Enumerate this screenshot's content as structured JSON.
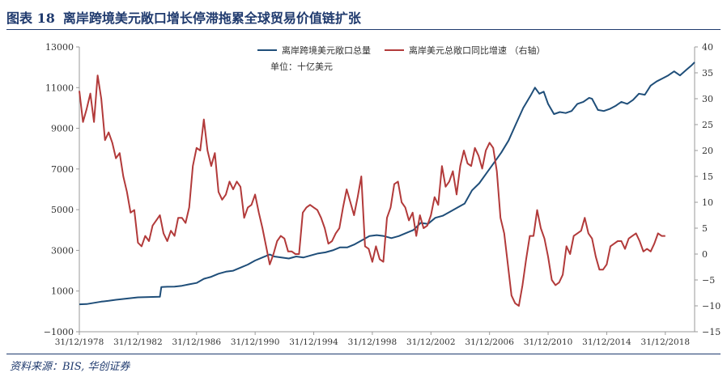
{
  "figure": {
    "label": "图表 18",
    "title": "离岸跨境美元敞口增长停滞拖累全球贸易价值链扩张",
    "source": "资料来源：BIS, 华创证券"
  },
  "chart_data": {
    "type": "line",
    "annotation": "单位：十亿美元",
    "left_axis": {
      "min": -1000,
      "max": 13000,
      "ticks": [
        -1000,
        1000,
        3000,
        5000,
        7000,
        9000,
        11000,
        13000
      ]
    },
    "right_axis": {
      "min": -15,
      "max": 40,
      "ticks": [
        -15,
        -10,
        -5,
        0,
        5,
        10,
        15,
        20,
        25,
        30,
        35,
        40
      ]
    },
    "x_axis": {
      "start": 1978.0,
      "end": 2020.0,
      "ticks": [
        {
          "value": 1978,
          "label": "31/12/1978"
        },
        {
          "value": 1982,
          "label": "31/12/1982"
        },
        {
          "value": 1986,
          "label": "31/12/1986"
        },
        {
          "value": 1990,
          "label": "31/12/1990"
        },
        {
          "value": 1994,
          "label": "31/12/1994"
        },
        {
          "value": 1998,
          "label": "31/12/1998"
        },
        {
          "value": 2002,
          "label": "31/12/2002"
        },
        {
          "value": 2006,
          "label": "31/12/2006"
        },
        {
          "value": 2010,
          "label": "31/12/2010"
        },
        {
          "value": 2014,
          "label": "31/12/2014"
        },
        {
          "value": 2018,
          "label": "31/12/2018"
        }
      ]
    },
    "legend_position": "top-center",
    "series": [
      {
        "name": "离岸跨境美元敞口总量",
        "axis": "left",
        "color": "#1f4e79",
        "points": [
          [
            1978.0,
            350
          ],
          [
            1978.5,
            360
          ],
          [
            1979.0,
            420
          ],
          [
            1979.5,
            480
          ],
          [
            1980.0,
            520
          ],
          [
            1980.5,
            570
          ],
          [
            1981.0,
            610
          ],
          [
            1981.5,
            650
          ],
          [
            1982.0,
            690
          ],
          [
            1982.5,
            700
          ],
          [
            1983.0,
            710
          ],
          [
            1983.5,
            720
          ],
          [
            1983.6,
            1200
          ],
          [
            1984.0,
            1210
          ],
          [
            1984.5,
            1220
          ],
          [
            1985.0,
            1260
          ],
          [
            1985.5,
            1330
          ],
          [
            1986.0,
            1400
          ],
          [
            1986.5,
            1600
          ],
          [
            1987.0,
            1700
          ],
          [
            1987.5,
            1850
          ],
          [
            1988.0,
            1950
          ],
          [
            1988.5,
            2000
          ],
          [
            1989.0,
            2150
          ],
          [
            1989.5,
            2300
          ],
          [
            1990.0,
            2500
          ],
          [
            1990.5,
            2650
          ],
          [
            1991.0,
            2800
          ],
          [
            1991.3,
            2700
          ],
          [
            1991.8,
            2650
          ],
          [
            1992.3,
            2600
          ],
          [
            1992.8,
            2700
          ],
          [
            1993.3,
            2650
          ],
          [
            1993.8,
            2750
          ],
          [
            1994.3,
            2850
          ],
          [
            1994.8,
            2900
          ],
          [
            1995.3,
            3000
          ],
          [
            1995.8,
            3150
          ],
          [
            1996.3,
            3150
          ],
          [
            1996.8,
            3300
          ],
          [
            1997.3,
            3500
          ],
          [
            1997.8,
            3700
          ],
          [
            1998.3,
            3750
          ],
          [
            1998.8,
            3700
          ],
          [
            1999.3,
            3600
          ],
          [
            1999.8,
            3700
          ],
          [
            2000.3,
            3850
          ],
          [
            2000.8,
            4000
          ],
          [
            2001.3,
            4350
          ],
          [
            2001.8,
            4300
          ],
          [
            2002.3,
            4600
          ],
          [
            2002.8,
            4700
          ],
          [
            2003.3,
            4900
          ],
          [
            2003.8,
            5100
          ],
          [
            2004.3,
            5300
          ],
          [
            2004.8,
            5950
          ],
          [
            2005.3,
            6300
          ],
          [
            2005.8,
            6800
          ],
          [
            2006.3,
            7300
          ],
          [
            2006.8,
            7800
          ],
          [
            2007.3,
            8400
          ],
          [
            2007.8,
            9200
          ],
          [
            2008.3,
            10000
          ],
          [
            2008.8,
            10600
          ],
          [
            2009.1,
            11000
          ],
          [
            2009.4,
            10700
          ],
          [
            2009.7,
            10800
          ],
          [
            2010.0,
            10200
          ],
          [
            2010.4,
            9700
          ],
          [
            2010.8,
            9800
          ],
          [
            2011.2,
            9750
          ],
          [
            2011.6,
            9850
          ],
          [
            2012.0,
            10200
          ],
          [
            2012.4,
            10300
          ],
          [
            2012.8,
            10500
          ],
          [
            2013.0,
            10450
          ],
          [
            2013.4,
            9900
          ],
          [
            2013.8,
            9850
          ],
          [
            2014.2,
            9950
          ],
          [
            2014.6,
            10100
          ],
          [
            2015.0,
            10300
          ],
          [
            2015.4,
            10200
          ],
          [
            2015.8,
            10400
          ],
          [
            2016.2,
            10700
          ],
          [
            2016.6,
            10650
          ],
          [
            2017.0,
            11100
          ],
          [
            2017.4,
            11300
          ],
          [
            2017.8,
            11450
          ],
          [
            2018.2,
            11600
          ],
          [
            2018.6,
            11800
          ],
          [
            2019.0,
            11600
          ],
          [
            2019.4,
            11850
          ],
          [
            2019.8,
            12100
          ],
          [
            2020.0,
            12250
          ]
        ]
      },
      {
        "name": "离岸美元总敞口同比增速 （右轴）",
        "axis": "right",
        "color": "#b23a3a",
        "points": [
          [
            1978.0,
            31.5
          ],
          [
            1978.25,
            25.5
          ],
          [
            1978.5,
            28
          ],
          [
            1978.75,
            31
          ],
          [
            1979.0,
            25.5
          ],
          [
            1979.25,
            34.5
          ],
          [
            1979.5,
            30
          ],
          [
            1979.75,
            22
          ],
          [
            1980.0,
            23.5
          ],
          [
            1980.25,
            21.5
          ],
          [
            1980.5,
            18.5
          ],
          [
            1980.75,
            19.5
          ],
          [
            1981.0,
            15
          ],
          [
            1981.25,
            12
          ],
          [
            1981.5,
            8
          ],
          [
            1981.75,
            8.5
          ],
          [
            1982.0,
            2.2
          ],
          [
            1982.25,
            1.5
          ],
          [
            1982.5,
            3.5
          ],
          [
            1982.75,
            2.5
          ],
          [
            1983.0,
            5.5
          ],
          [
            1983.25,
            6.5
          ],
          [
            1983.5,
            7.5
          ],
          [
            1983.75,
            4
          ],
          [
            1984.0,
            2.5
          ],
          [
            1984.25,
            4.5
          ],
          [
            1984.5,
            3.5
          ],
          [
            1984.75,
            7
          ],
          [
            1985.0,
            7
          ],
          [
            1985.25,
            6
          ],
          [
            1985.5,
            9
          ],
          [
            1985.75,
            17
          ],
          [
            1986.0,
            20.5
          ],
          [
            1986.25,
            20
          ],
          [
            1986.5,
            26
          ],
          [
            1986.75,
            20
          ],
          [
            1987.0,
            17
          ],
          [
            1987.25,
            19.5
          ],
          [
            1987.5,
            12
          ],
          [
            1987.75,
            10.5
          ],
          [
            1988.0,
            11.5
          ],
          [
            1988.25,
            14
          ],
          [
            1988.5,
            12.5
          ],
          [
            1988.75,
            14
          ],
          [
            1989.0,
            13
          ],
          [
            1989.25,
            7
          ],
          [
            1989.5,
            9
          ],
          [
            1989.75,
            9.5
          ],
          [
            1990.0,
            11.5
          ],
          [
            1990.25,
            8
          ],
          [
            1990.5,
            5
          ],
          [
            1990.75,
            1.5
          ],
          [
            1991.0,
            -2
          ],
          [
            1991.25,
            0
          ],
          [
            1991.5,
            2.5
          ],
          [
            1991.75,
            3.5
          ],
          [
            1992.0,
            3
          ],
          [
            1992.25,
            0.5
          ],
          [
            1992.5,
            0.5
          ],
          [
            1992.75,
            0
          ],
          [
            1993.0,
            0
          ],
          [
            1993.25,
            8
          ],
          [
            1993.5,
            9
          ],
          [
            1993.75,
            9.5
          ],
          [
            1994.0,
            9
          ],
          [
            1994.25,
            8.5
          ],
          [
            1994.5,
            7
          ],
          [
            1994.75,
            5
          ],
          [
            1995.0,
            2
          ],
          [
            1995.25,
            2.5
          ],
          [
            1995.5,
            4
          ],
          [
            1995.75,
            5
          ],
          [
            1996.0,
            9
          ],
          [
            1996.25,
            12.5
          ],
          [
            1996.5,
            10
          ],
          [
            1996.75,
            7.5
          ],
          [
            1997.0,
            11
          ],
          [
            1997.25,
            15
          ],
          [
            1997.5,
            1.5
          ],
          [
            1997.75,
            1
          ],
          [
            1998.0,
            -1.5
          ],
          [
            1998.25,
            1.5
          ],
          [
            1998.5,
            -1
          ],
          [
            1998.75,
            -1.5
          ],
          [
            1999.0,
            7
          ],
          [
            1999.25,
            9
          ],
          [
            1999.5,
            13.5
          ],
          [
            1999.75,
            14
          ],
          [
            2000.0,
            10
          ],
          [
            2000.25,
            9
          ],
          [
            2000.5,
            6.5
          ],
          [
            2000.75,
            8
          ],
          [
            2001.0,
            3.5
          ],
          [
            2001.25,
            7.5
          ],
          [
            2001.5,
            5
          ],
          [
            2001.75,
            5.5
          ],
          [
            2002.0,
            7.5
          ],
          [
            2002.25,
            11
          ],
          [
            2002.5,
            9.5
          ],
          [
            2002.75,
            17
          ],
          [
            2003.0,
            13
          ],
          [
            2003.25,
            14
          ],
          [
            2003.5,
            16
          ],
          [
            2003.75,
            11.5
          ],
          [
            2004.0,
            17
          ],
          [
            2004.25,
            20
          ],
          [
            2004.5,
            17.5
          ],
          [
            2004.75,
            17
          ],
          [
            2005.0,
            20.5
          ],
          [
            2005.25,
            19
          ],
          [
            2005.5,
            16.5
          ],
          [
            2005.75,
            20
          ],
          [
            2006.0,
            21.5
          ],
          [
            2006.25,
            20.5
          ],
          [
            2006.5,
            16
          ],
          [
            2006.75,
            7
          ],
          [
            2007.0,
            4
          ],
          [
            2007.25,
            -2
          ],
          [
            2007.5,
            -8
          ],
          [
            2007.75,
            -9.5
          ],
          [
            2008.0,
            -10
          ],
          [
            2008.25,
            -6
          ],
          [
            2008.5,
            -1
          ],
          [
            2008.75,
            3.5
          ],
          [
            2009.0,
            3.5
          ],
          [
            2009.25,
            8.5
          ],
          [
            2009.5,
            5
          ],
          [
            2009.75,
            3
          ],
          [
            2010.0,
            -0.5
          ],
          [
            2010.25,
            -5
          ],
          [
            2010.5,
            -6
          ],
          [
            2010.75,
            -5.5
          ],
          [
            2011.0,
            -4
          ],
          [
            2011.25,
            1.5
          ],
          [
            2011.5,
            0
          ],
          [
            2011.75,
            3.5
          ],
          [
            2012.0,
            4
          ],
          [
            2012.25,
            4.5
          ],
          [
            2012.5,
            7
          ],
          [
            2012.75,
            4
          ],
          [
            2013.0,
            3
          ],
          [
            2013.25,
            -0.5
          ],
          [
            2013.5,
            -3
          ],
          [
            2013.75,
            -3
          ],
          [
            2014.0,
            -2
          ],
          [
            2014.25,
            1.5
          ],
          [
            2014.5,
            2
          ],
          [
            2014.75,
            2.5
          ],
          [
            2015.0,
            2.5
          ],
          [
            2015.25,
            1
          ],
          [
            2015.5,
            3
          ],
          [
            2015.75,
            3.5
          ],
          [
            2016.0,
            4
          ],
          [
            2016.25,
            2.5
          ],
          [
            2016.5,
            0.5
          ],
          [
            2016.75,
            1
          ],
          [
            2017.0,
            0.5
          ],
          [
            2017.25,
            2
          ],
          [
            2017.5,
            4
          ],
          [
            2017.75,
            3.5
          ],
          [
            2018.0,
            3.5
          ]
        ]
      }
    ]
  }
}
